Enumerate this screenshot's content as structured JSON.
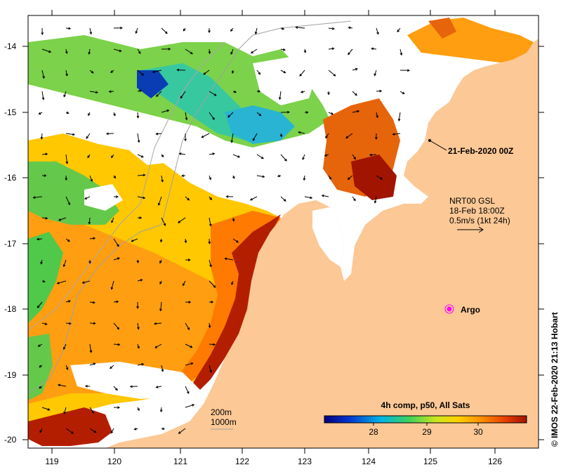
{
  "map": {
    "lon_ticks": [
      "119",
      "120",
      "121",
      "122",
      "123",
      "124",
      "125",
      "126"
    ],
    "lat_ticks": [
      "-14",
      "-15",
      "-16",
      "-17",
      "-18",
      "-19",
      "-20"
    ],
    "track_label": "21-Feb-2020 00Z",
    "current_info": {
      "line1": "NRT00 GSL",
      "line2": "18-Feb 18:00Z",
      "line3": "0.5m/s (1kt 24h)"
    },
    "argo_label": "Argo",
    "contour_labels": [
      "200m",
      "1000m"
    ],
    "credit": "IMOS 22-Feb-2020 21:13 Hobart"
  },
  "legend": {
    "title": "4h comp, p50, All Sats",
    "ticks": [
      "28",
      "29",
      "30"
    ],
    "colors": [
      "#00007f",
      "#0033cc",
      "#00b4e6",
      "#3fd25a",
      "#c8e61e",
      "#ffd200",
      "#ff8c00",
      "#e63c00",
      "#9e1400"
    ]
  },
  "colors": {
    "land": "#fcc896",
    "cloud": "#ffffff",
    "argo": "#ff00ff"
  }
}
